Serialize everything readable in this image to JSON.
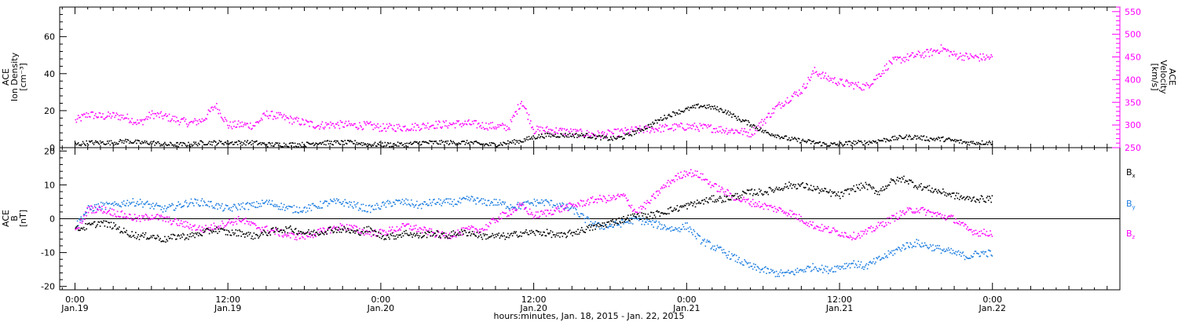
{
  "colors": {
    "density": "#000000",
    "velocity": "#ff00ff",
    "bx": "#000000",
    "by": "#1e7ee0",
    "bz": "#ff00ff",
    "axes": "#000000"
  },
  "top_panel": {
    "left_label": [
      "ACE",
      "Ion Density",
      "[cm⁻³]"
    ],
    "right_label": [
      "ACE",
      "Velocity",
      "[km/s]"
    ]
  },
  "bottom_panel": {
    "left_label": [
      "ACE",
      "B",
      "[nT]"
    ],
    "legend": [
      {
        "name": "B",
        "sub": "x",
        "color": "#000000"
      },
      {
        "name": "B",
        "sub": "y",
        "color": "#1e7ee0"
      },
      {
        "name": "B",
        "sub": "z",
        "color": "#ff00ff"
      }
    ]
  },
  "xlabel": "hours:minutes, Jan. 18, 2015 - Jan. 22, 2015",
  "chart_data": [
    {
      "type": "scatter",
      "panel": "top",
      "x_unit": "hours since Jan.19 00:00",
      "xlim": [
        -1.2,
        82
      ],
      "x_ticks": [
        0,
        12,
        24,
        36,
        48,
        60,
        72
      ],
      "x_tick_labels": [
        [
          "0:00",
          "Jan.19"
        ],
        [
          "12:00",
          "Jan.19"
        ],
        [
          "0:00",
          "Jan.20"
        ],
        [
          "12:00",
          "Jan.20"
        ],
        [
          "0:00",
          "Jan.21"
        ],
        [
          "12:00",
          "Jan.21"
        ],
        [
          "0:00",
          "Jan.22"
        ]
      ],
      "y_left": {
        "label": "ACE Ion Density [cm⁻³]",
        "lim": [
          0,
          76
        ],
        "ticks": [
          0,
          20,
          40,
          60
        ]
      },
      "y_right": {
        "label": "ACE Velocity [km/s]",
        "lim": [
          250,
          560
        ],
        "ticks": [
          250,
          300,
          350,
          400,
          450,
          500,
          550
        ]
      },
      "series": [
        {
          "name": "Ion Density",
          "axis": "left",
          "color": "#000000",
          "x": [
            0,
            1,
            2,
            3,
            4,
            5,
            6,
            7,
            8,
            9,
            10,
            11,
            12,
            13,
            14,
            15,
            16,
            17,
            18,
            19,
            20,
            21,
            22,
            23,
            24,
            25,
            26,
            27,
            28,
            29,
            30,
            31,
            32,
            33,
            34,
            35,
            36,
            37,
            38,
            39,
            40,
            41,
            42,
            43,
            44,
            45,
            46,
            47,
            48,
            49,
            50,
            51,
            52,
            53,
            54,
            55,
            56,
            57,
            58,
            59,
            60,
            61,
            62,
            63,
            64,
            65,
            66,
            67,
            68,
            69,
            70,
            71
          ],
          "values": [
            2,
            3,
            3,
            3,
            4,
            3,
            3,
            2,
            2,
            2,
            3,
            3,
            3,
            3,
            3,
            2,
            2,
            2,
            2,
            3,
            3,
            3,
            3,
            2,
            2,
            2,
            2,
            3,
            3,
            3,
            3,
            3,
            2,
            2,
            3,
            4,
            6,
            7,
            7,
            7,
            7,
            6,
            5,
            6,
            9,
            12,
            16,
            19,
            21,
            23,
            22,
            20,
            16,
            13,
            9,
            7,
            5,
            4,
            3,
            2,
            2,
            3,
            3,
            4,
            5,
            6,
            6,
            5,
            5,
            4,
            3,
            3
          ]
        },
        {
          "name": "Velocity",
          "axis": "right",
          "color": "#ff00ff",
          "x": [
            0,
            1,
            2,
            3,
            4,
            5,
            6,
            7,
            8,
            9,
            10,
            11,
            12,
            13,
            14,
            15,
            16,
            17,
            18,
            19,
            20,
            21,
            22,
            23,
            24,
            25,
            26,
            27,
            28,
            29,
            30,
            31,
            32,
            33,
            34,
            35,
            36,
            37,
            38,
            39,
            40,
            41,
            42,
            43,
            44,
            45,
            46,
            47,
            48,
            49,
            50,
            51,
            52,
            53,
            54,
            55,
            56,
            57,
            58,
            59,
            60,
            61,
            62,
            63,
            64,
            65,
            66,
            67,
            68,
            69,
            70,
            71
          ],
          "values": [
            310,
            325,
            320,
            322,
            318,
            305,
            325,
            320,
            312,
            305,
            312,
            345,
            300,
            302,
            300,
            325,
            320,
            312,
            306,
            300,
            302,
            302,
            300,
            300,
            295,
            296,
            296,
            298,
            302,
            302,
            304,
            304,
            300,
            298,
            296,
            355,
            290,
            290,
            288,
            285,
            282,
            280,
            282,
            286,
            290,
            292,
            294,
            296,
            298,
            296,
            294,
            290,
            288,
            283,
            310,
            340,
            360,
            378,
            420,
            405,
            395,
            390,
            385,
            410,
            440,
            448,
            455,
            460,
            470,
            455,
            452,
            450
          ]
        }
      ]
    },
    {
      "type": "scatter",
      "panel": "bottom",
      "x_unit": "hours since Jan.19 00:00",
      "xlim": [
        -1.2,
        82
      ],
      "y_left": {
        "label": "ACE B [nT]",
        "lim": [
          -21,
          21
        ],
        "ticks": [
          -20,
          -10,
          0,
          10,
          20
        ]
      },
      "zero_line": true,
      "series": [
        {
          "name": "Bx",
          "color": "#000000",
          "x": [
            0,
            1,
            2,
            3,
            4,
            5,
            6,
            7,
            8,
            9,
            10,
            11,
            12,
            13,
            14,
            15,
            16,
            17,
            18,
            19,
            20,
            21,
            22,
            23,
            24,
            25,
            26,
            27,
            28,
            29,
            30,
            31,
            32,
            33,
            34,
            35,
            36,
            37,
            38,
            39,
            40,
            41,
            42,
            43,
            44,
            45,
            46,
            47,
            48,
            49,
            50,
            51,
            52,
            53,
            54,
            55,
            56,
            57,
            58,
            59,
            60,
            61,
            62,
            63,
            64,
            65,
            66,
            67,
            68,
            69,
            70,
            71
          ],
          "values": [
            -3,
            -2,
            -1,
            -2,
            -4,
            -5,
            -5,
            -6,
            -5,
            -5,
            -4,
            -3,
            -4,
            -4,
            -5,
            -4,
            -3,
            -3,
            -4,
            -4,
            -3,
            -3,
            -4,
            -3,
            -5,
            -5,
            -4,
            -5,
            -4,
            -5,
            -4,
            -4,
            -5,
            -5,
            -5,
            -4,
            -4,
            -4,
            -5,
            -4,
            -3,
            -2,
            -1,
            0,
            1,
            1,
            2,
            3,
            4,
            5,
            6,
            6,
            7,
            8,
            8,
            9,
            10,
            10,
            9,
            8,
            7,
            9,
            10,
            8,
            11,
            12,
            10,
            9,
            8,
            7,
            6,
            6
          ]
        },
        {
          "name": "By",
          "color": "#1e7ee0",
          "x": [
            0,
            1,
            2,
            3,
            4,
            5,
            6,
            7,
            8,
            9,
            10,
            11,
            12,
            13,
            14,
            15,
            16,
            17,
            18,
            19,
            20,
            21,
            22,
            23,
            24,
            25,
            26,
            27,
            28,
            29,
            30,
            31,
            32,
            33,
            34,
            35,
            36,
            37,
            38,
            39,
            40,
            41,
            42,
            43,
            44,
            45,
            46,
            47,
            48,
            49,
            50,
            51,
            52,
            53,
            54,
            55,
            56,
            57,
            58,
            59,
            60,
            61,
            62,
            63,
            64,
            65,
            66,
            67,
            68,
            69,
            70,
            71
          ],
          "values": [
            -2,
            3,
            4,
            4,
            5,
            5,
            4,
            3,
            4,
            5,
            5,
            4,
            3,
            4,
            4,
            5,
            4,
            3,
            3,
            4,
            5,
            5,
            4,
            3,
            4,
            5,
            5,
            4,
            5,
            5,
            5,
            6,
            5,
            5,
            4,
            4,
            5,
            5,
            4,
            3,
            0,
            -2,
            -2,
            -1,
            0,
            -1,
            -2,
            -3,
            -2,
            -6,
            -8,
            -10,
            -12,
            -14,
            -15,
            -16,
            -16,
            -15,
            -14,
            -15,
            -14,
            -13,
            -14,
            -12,
            -10,
            -8,
            -7,
            -8,
            -9,
            -10,
            -11,
            -10
          ]
        },
        {
          "name": "Bz",
          "color": "#ff00ff",
          "x": [
            0,
            1,
            2,
            3,
            4,
            5,
            6,
            7,
            8,
            9,
            10,
            11,
            12,
            13,
            14,
            15,
            16,
            17,
            18,
            19,
            20,
            21,
            22,
            23,
            24,
            25,
            26,
            27,
            28,
            29,
            30,
            31,
            32,
            33,
            34,
            35,
            36,
            37,
            38,
            39,
            40,
            41,
            42,
            43,
            44,
            45,
            46,
            47,
            48,
            49,
            50,
            51,
            52,
            53,
            54,
            55,
            56,
            57,
            58,
            59,
            60,
            61,
            62,
            63,
            64,
            65,
            66,
            67,
            68,
            69,
            70,
            71
          ],
          "values": [
            -4,
            3,
            3,
            2,
            1,
            0,
            1,
            0,
            -1,
            -2,
            -3,
            -2,
            -1,
            0,
            -2,
            -3,
            -4,
            -5,
            -5,
            -4,
            -3,
            -2,
            -3,
            -4,
            -4,
            -3,
            -2,
            -3,
            -4,
            -5,
            -4,
            -3,
            -3,
            0,
            2,
            4,
            1,
            2,
            3,
            4,
            5,
            6,
            6,
            7,
            2,
            5,
            9,
            12,
            14,
            13,
            10,
            8,
            6,
            5,
            4,
            3,
            2,
            0,
            -2,
            -3,
            -4,
            -5,
            -4,
            -2,
            0,
            2,
            3,
            2,
            1,
            0,
            -3,
            -4
          ]
        }
      ]
    }
  ]
}
